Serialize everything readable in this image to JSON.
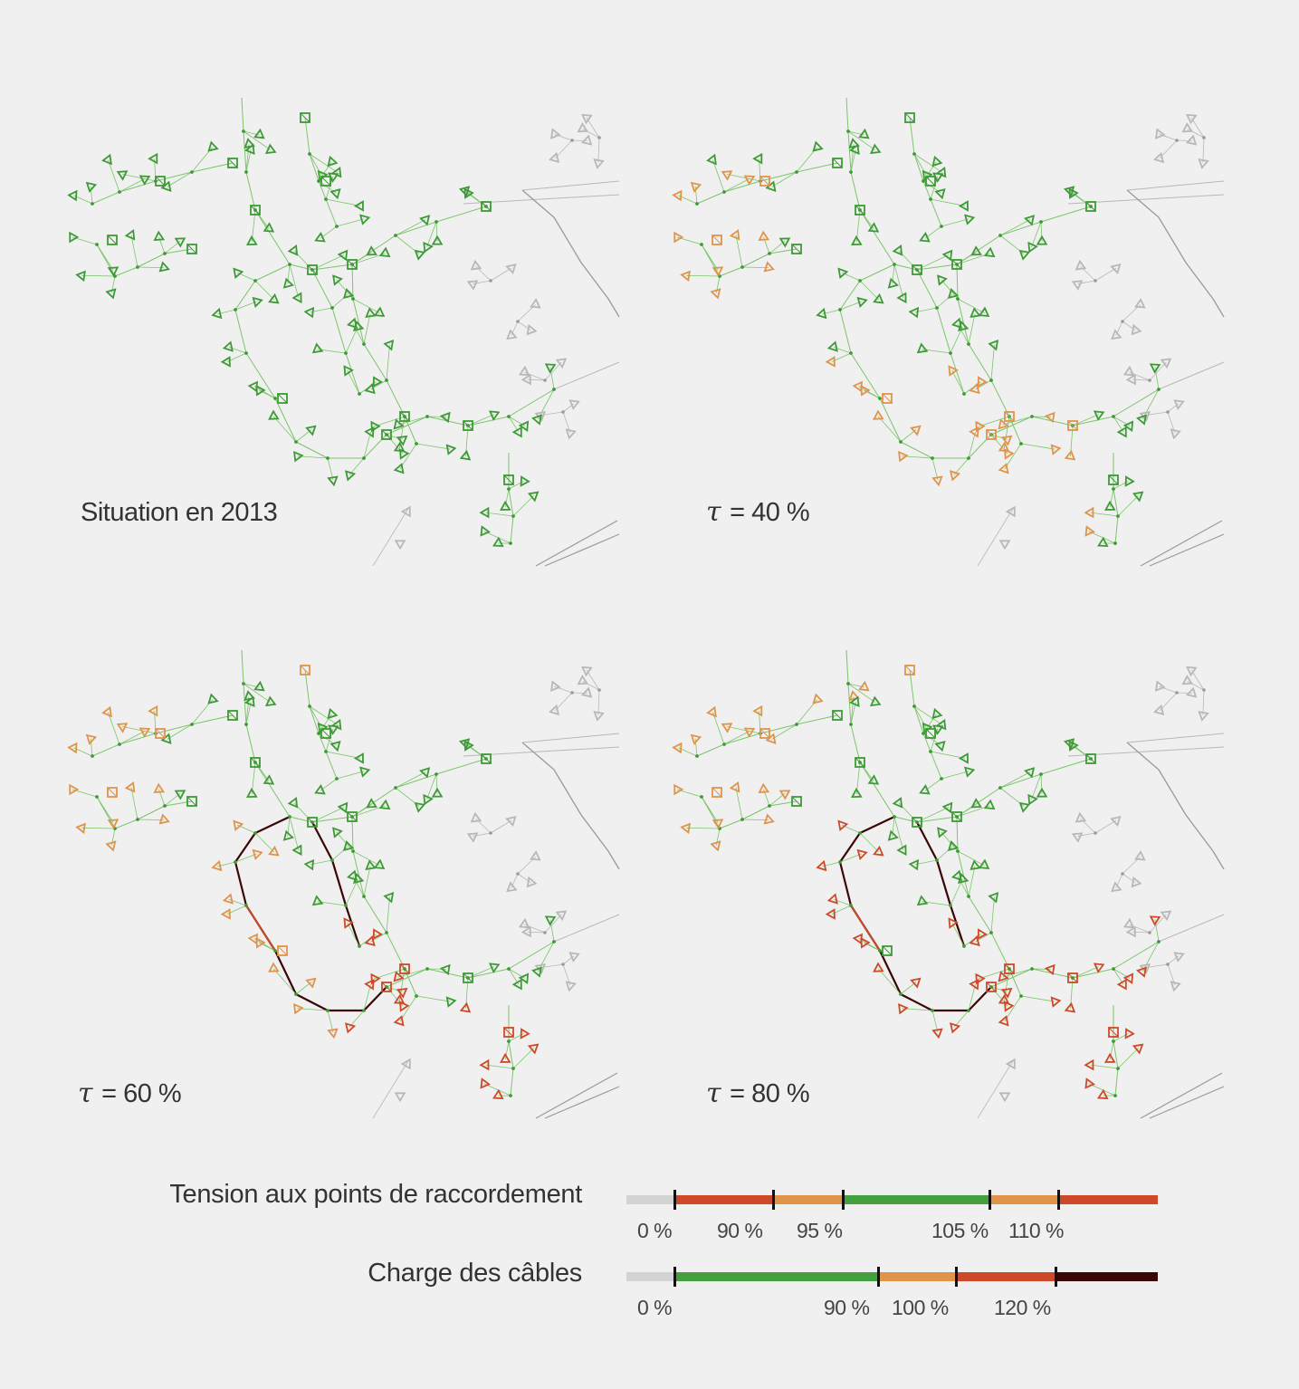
{
  "panels": [
    {
      "caption": "Situation en 2013",
      "tau": ""
    },
    {
      "caption": "= 40 %",
      "tau": "τ"
    },
    {
      "caption": "= 60 %",
      "tau": "τ"
    },
    {
      "caption": "= 80 %",
      "tau": "τ"
    }
  ],
  "legend": {
    "voltage": {
      "label": "Tension aux points de raccordement",
      "ticks": [
        "0 %",
        "90 %",
        "95 %",
        "105 %",
        "110 %"
      ],
      "colors": [
        "#d3d3d3",
        "#cc4a28",
        "#e0944a",
        "#44a03e",
        "#e0944a",
        "#cc4a28"
      ]
    },
    "load": {
      "label": "Charge des câbles",
      "ticks": [
        "0 %",
        "90 %",
        "100 %",
        "120 %"
      ],
      "colors": [
        "#d3d3d3",
        "#44a03e",
        "#e0944a",
        "#cc4a28",
        "#3a0606"
      ]
    }
  }
}
